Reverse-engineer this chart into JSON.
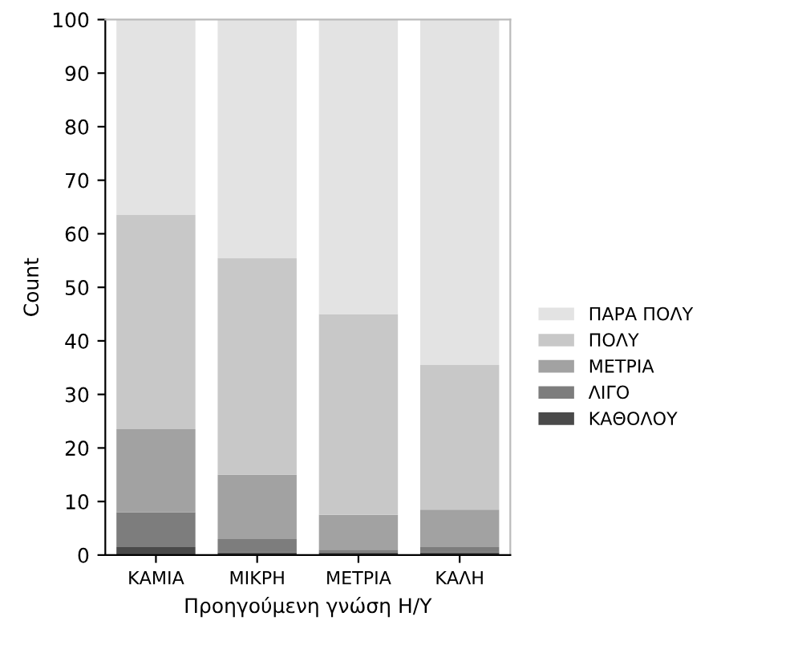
{
  "chart_data": {
    "type": "bar",
    "stacked": true,
    "xlabel": "Προηγούμενη γνώση Η/Υ",
    "ylabel": "Count",
    "categories": [
      "ΚΑΜΙΑ",
      "ΜΙΚΡΗ",
      "ΜΕΤΡΙΑ",
      "ΚΑΛΗ"
    ],
    "series": [
      {
        "name": "ΚΑΘΟΛΟΥ",
        "color": "#4a4a4a",
        "values": [
          1.5,
          0.5,
          0.5,
          0.5
        ]
      },
      {
        "name": "ΛΙΓΟ",
        "color": "#7d7d7d",
        "values": [
          6.5,
          2.5,
          0.5,
          1
        ]
      },
      {
        "name": "ΜΕΤΡΙΑ",
        "color": "#a2a2a2",
        "values": [
          15.5,
          12,
          6.5,
          7
        ]
      },
      {
        "name": "ΠΟΛΥ",
        "color": "#c8c8c8",
        "values": [
          40,
          40.5,
          37.5,
          27
        ]
      },
      {
        "name": "ΠΑΡΑ ΠΟΛΥ",
        "color": "#e3e3e3",
        "values": [
          36.5,
          44.5,
          55,
          64.5
        ]
      }
    ],
    "ylim": [
      0,
      100
    ],
    "yticks": [
      0,
      10,
      20,
      30,
      40,
      50,
      60,
      70,
      80,
      90,
      100
    ],
    "grid": false,
    "legend": "right"
  }
}
